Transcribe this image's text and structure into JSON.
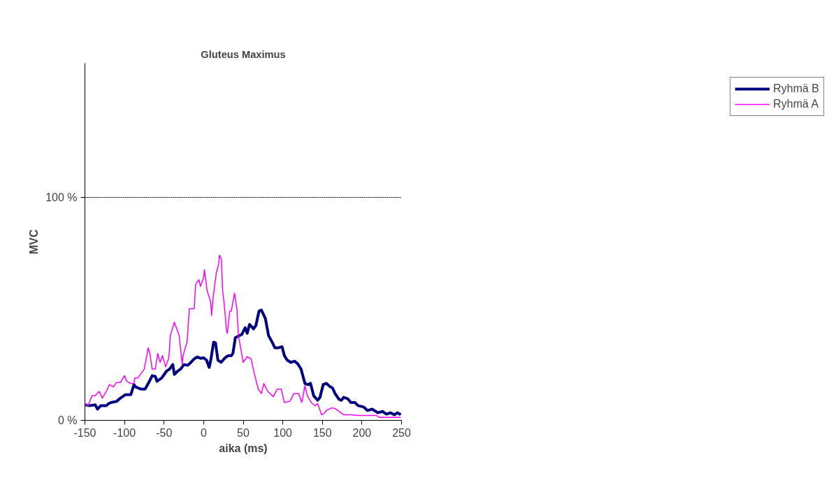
{
  "chart_data": {
    "type": "line",
    "title": "Gluteus Maximus",
    "xlabel": "aika (ms)",
    "ylabel": "MVC",
    "xlim": [
      -150,
      250
    ],
    "xticks": [
      -150,
      -100,
      -50,
      0,
      50,
      100,
      150,
      200,
      250
    ],
    "ylim": [
      0,
      160
    ],
    "yticks": [
      {
        "value": 0,
        "label": "0 %"
      },
      {
        "value": 100,
        "label": "100 %"
      }
    ],
    "grid": "y",
    "legend": "right",
    "marker": "none",
    "line_style": "solid",
    "series": [
      {
        "name": "Ryhmä B",
        "color": "#000080",
        "x": [
          -150,
          -144,
          -137,
          -134,
          -130,
          -123,
          -120,
          -117,
          -110,
          -105,
          -99,
          -92,
          -88,
          -86,
          -79,
          -74,
          -70,
          -65,
          -61,
          -59,
          -53,
          -47,
          -43,
          -39,
          -37,
          -33,
          -29,
          -25,
          -20,
          -16,
          -12,
          -8,
          -4,
          0,
          3.6,
          7,
          9,
          12.6,
          15,
          18,
          22,
          27,
          31,
          35,
          37,
          40,
          45,
          48,
          52.5,
          55,
          58,
          63,
          66,
          70,
          73,
          78,
          82,
          87,
          90,
          94,
          99,
          102,
          105.5,
          110,
          115,
          119,
          123,
          128,
          132,
          135,
          139,
          144,
          147,
          151,
          155,
          159,
          163,
          166,
          171,
          174,
          177,
          182,
          186,
          191,
          195,
          202,
          207,
          213,
          220,
          226,
          231,
          236,
          241,
          245,
          249
        ],
        "values": [
          7,
          6.6,
          7,
          5,
          6.6,
          6.6,
          7.5,
          8,
          8.5,
          10,
          11.5,
          11.5,
          16,
          15,
          14,
          14,
          16.5,
          20,
          19.7,
          17.5,
          19,
          22,
          23,
          25,
          20.6,
          22,
          23,
          25,
          24.7,
          26,
          27.5,
          28.4,
          27.8,
          28,
          27,
          23.7,
          27,
          35,
          34.7,
          27,
          26,
          28,
          29,
          29,
          30,
          37,
          38,
          38.4,
          41.5,
          39,
          43,
          41,
          42.5,
          49,
          49.4,
          45.6,
          38,
          34.7,
          32.5,
          32.5,
          33,
          29,
          27,
          26,
          26.5,
          25.3,
          23,
          16.5,
          16,
          16.6,
          11,
          9,
          10.3,
          16,
          16.6,
          15.3,
          14.4,
          12,
          9.4,
          9,
          10.3,
          9.7,
          8,
          8,
          6.6,
          6,
          4.4,
          5,
          3.4,
          4,
          2.8,
          3.4,
          2.5,
          3.4,
          2.5
        ]
      },
      {
        "name": "Ryhmä A",
        "color": "#ff00ff",
        "x": [
          -150,
          -146,
          -141,
          -137,
          -132,
          -128,
          -123,
          -119,
          -114,
          -110,
          -105,
          -100,
          -97,
          -92,
          -88,
          -87,
          -83,
          -79,
          -75,
          -70,
          -68,
          -65,
          -61,
          -58,
          -55,
          -52,
          -48,
          -44,
          -42,
          -37,
          -34,
          -31,
          -27,
          -26,
          -21,
          -18,
          -12,
          -10,
          -6,
          -4,
          0,
          1,
          4.5,
          9,
          10,
          12,
          16,
          19,
          20,
          22.5,
          24,
          26,
          29,
          30,
          33,
          35,
          39,
          42,
          44,
          50,
          55,
          60,
          64,
          69,
          73,
          76,
          81,
          88,
          93,
          98,
          102,
          109,
          114,
          120,
          124,
          128,
          131,
          136,
          141,
          144,
          149,
          152,
          155,
          162,
          166,
          171,
          177,
          186,
          195,
          207,
          218,
          222,
          236,
          249
        ],
        "values": [
          7.5,
          6.6,
          11,
          11,
          13,
          10,
          13,
          16,
          15,
          17,
          17,
          20,
          17.5,
          16.5,
          16.5,
          19,
          19,
          21,
          23,
          32.5,
          30,
          23,
          23,
          30,
          26,
          29,
          24,
          28,
          38,
          44,
          41,
          38,
          25,
          29,
          35,
          50,
          50,
          61,
          63,
          60,
          64,
          67.5,
          58,
          53,
          47,
          55,
          66,
          70,
          74,
          72,
          58,
          52,
          40,
          39,
          49,
          49,
          57,
          50,
          38,
          26,
          28.5,
          27.5,
          21,
          14,
          12,
          16.5,
          13,
          10.6,
          14,
          14,
          8,
          8.5,
          12,
          12,
          8,
          15.5,
          11,
          8,
          6.5,
          7.5,
          2.5,
          3,
          4.4,
          5.6,
          5.3,
          4,
          2.5,
          2.5,
          2.2,
          2.2,
          2.2,
          1.3,
          1.3,
          1.3
        ]
      }
    ]
  }
}
